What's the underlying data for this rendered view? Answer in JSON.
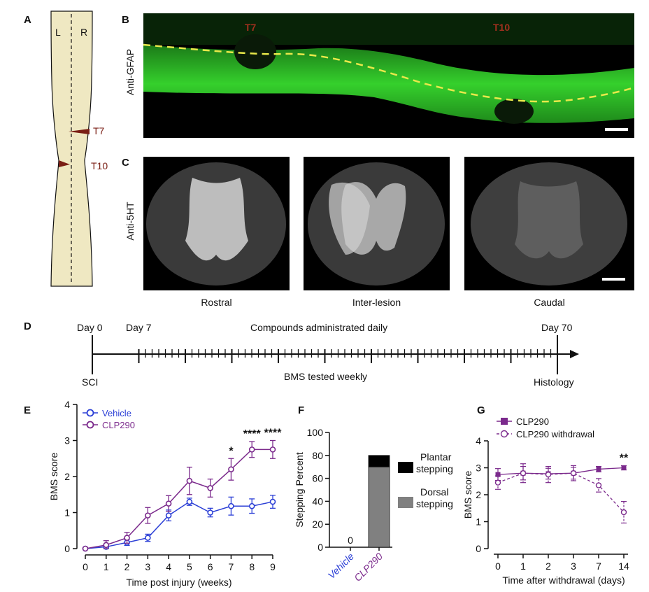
{
  "panels": {
    "A": {
      "label": "A",
      "left_label": "L",
      "right_label": "R",
      "lesions": [
        "T7",
        "T10"
      ],
      "colors": {
        "cord": "#efe8c2",
        "lesion": "#7a1e14"
      }
    },
    "B": {
      "label": "B",
      "stain": "Anti-GFAP",
      "lesions": [
        "T7",
        "T10"
      ],
      "colors": {
        "tissue": "#2fd12a",
        "dash": "#e8e84a",
        "lesion_text": "#a0301e"
      }
    },
    "C": {
      "label": "C",
      "stain": "Anti-5HT",
      "sections": [
        "Rostral",
        "Inter-lesion",
        "Caudal"
      ]
    },
    "D": {
      "label": "D",
      "day0": "Day 0",
      "day7": "Day 7",
      "day70": "Day 70",
      "compounds": "Compounds administrated daily",
      "sci": "SCI",
      "bms_weekly": "BMS tested weekly",
      "histology": "Histology"
    },
    "E": {
      "label": "E"
    },
    "F": {
      "label": "F"
    },
    "G": {
      "label": "G"
    }
  },
  "chart_data": [
    {
      "panel": "E",
      "type": "line",
      "xlabel": "Time post injury (weeks)",
      "ylabel": "BMS score",
      "x": [
        0,
        1,
        2,
        3,
        4,
        5,
        6,
        7,
        8,
        9
      ],
      "xlim": [
        0,
        9
      ],
      "ylim": [
        0,
        4
      ],
      "yticks": [
        0,
        1,
        2,
        3,
        4
      ],
      "legend_position": "top-left",
      "series": [
        {
          "name": "Vehicle",
          "color": "#2b3fd6",
          "values": [
            0,
            0.05,
            0.17,
            0.3,
            0.92,
            1.3,
            1.0,
            1.18,
            1.18,
            1.3
          ],
          "errors": [
            0.03,
            0.07,
            0.08,
            0.1,
            0.15,
            0.1,
            0.12,
            0.25,
            0.2,
            0.18
          ]
        },
        {
          "name": "CLP290",
          "color": "#7b2a8c",
          "values": [
            0,
            0.1,
            0.3,
            0.92,
            1.25,
            1.88,
            1.68,
            2.2,
            2.75,
            2.75
          ],
          "errors": [
            0.03,
            0.12,
            0.15,
            0.22,
            0.22,
            0.38,
            0.25,
            0.3,
            0.22,
            0.25
          ]
        }
      ],
      "annotations": [
        {
          "x": 7,
          "text": "*"
        },
        {
          "x": 8,
          "text": "****"
        },
        {
          "x": 9,
          "text": "****"
        }
      ]
    },
    {
      "panel": "F",
      "type": "bar",
      "ylabel": "Stepping Percent",
      "categories": [
        "Vehicle",
        "CLP290"
      ],
      "category_colors": [
        "#2b3fd6",
        "#7b2a8c"
      ],
      "ylim": [
        0,
        100
      ],
      "yticks": [
        0,
        20,
        40,
        60,
        80,
        100
      ],
      "series": [
        {
          "name": "Dorsal stepping",
          "color": "#808080",
          "values": [
            0,
            70
          ]
        },
        {
          "name": "Plantar stepping",
          "color": "#000000",
          "values": [
            0,
            10
          ]
        }
      ],
      "bar_labels": [
        "0",
        ""
      ],
      "legend": [
        {
          "text_lines": [
            "Plantar",
            "stepping"
          ],
          "color": "#000000"
        },
        {
          "text_lines": [
            "Dorsal",
            "stepping"
          ],
          "color": "#808080"
        }
      ]
    },
    {
      "panel": "G",
      "type": "line",
      "xlabel": "Time after withdrawal (days)",
      "ylabel": "BMS score",
      "categories": [
        "0",
        "1",
        "2",
        "3",
        "7",
        "14"
      ],
      "ylim": [
        0,
        4
      ],
      "yticks": [
        0,
        1,
        2,
        3,
        4
      ],
      "legend_position": "top-left",
      "series": [
        {
          "name": "CLP290",
          "color": "#7b2a8c",
          "style": "solid-square",
          "values": [
            2.75,
            2.8,
            2.78,
            2.8,
            2.95,
            3.0
          ],
          "errors": [
            0.22,
            0.25,
            0.2,
            0.22,
            0.1,
            0.08
          ]
        },
        {
          "name": "CLP290 withdrawal",
          "color": "#7b2a8c",
          "style": "dashed-circle",
          "values": [
            2.45,
            2.8,
            2.75,
            2.8,
            2.35,
            1.35
          ],
          "errors": [
            0.25,
            0.35,
            0.3,
            0.28,
            0.25,
            0.4
          ]
        }
      ],
      "annotations": [
        {
          "x_index": 5,
          "text": "**"
        }
      ]
    }
  ]
}
